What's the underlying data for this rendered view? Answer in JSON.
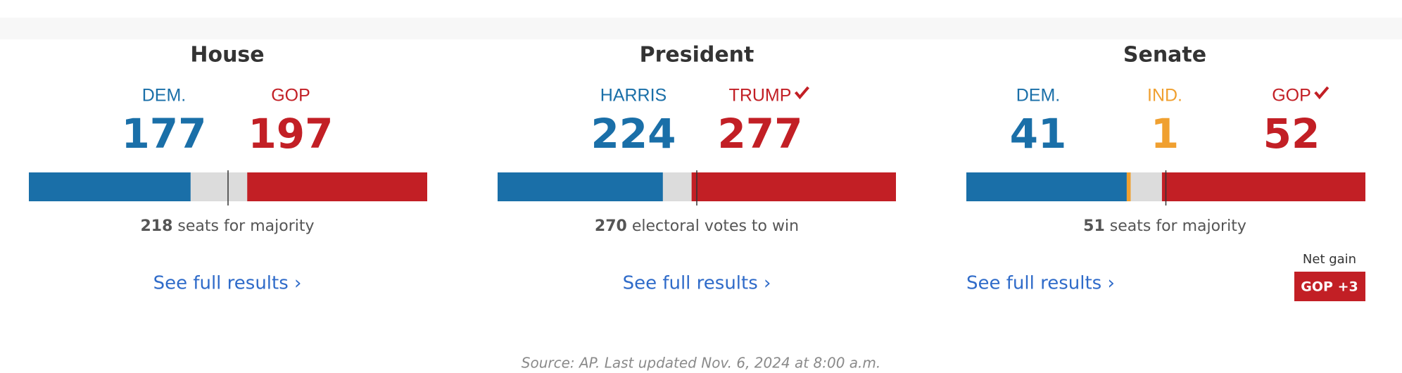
{
  "races": [
    {
      "title": "House",
      "candidates": [
        {
          "name": "DEM.",
          "votes": 177,
          "color": "#1a6fa8",
          "winner": false
        },
        {
          "name": "GOP",
          "votes": 197,
          "color": "#c21f25",
          "winner": false
        }
      ],
      "threshold": 218,
      "threshold_text": "seats for majority",
      "link": "See full results ›"
    },
    {
      "title": "President",
      "candidates": [
        {
          "name": "HARRIS",
          "votes": 224,
          "color": "#1a6fa8",
          "winner": false
        },
        {
          "name": "TRUMP",
          "votes": 277,
          "color": "#c21f25",
          "winner": true
        }
      ],
      "threshold": 270,
      "threshold_text": "electoral votes to win",
      "link": "See full results ›"
    },
    {
      "title": "Senate",
      "candidates": [
        {
          "name": "DEM.",
          "votes": 41,
          "color": "#1a6fa8",
          "winner": false
        },
        {
          "name": "IND.",
          "votes": 1,
          "color": "#f0a030",
          "winner": false
        },
        {
          "name": "GOP",
          "votes": 52,
          "color": "#c21f25",
          "winner": true
        }
      ],
      "threshold": 51,
      "threshold_text": "seats for majority",
      "link": "See full results ›"
    }
  ],
  "net_gain": {
    "label": "Net gain",
    "value": "GOP +3"
  },
  "source": "Source: AP. Last updated Nov. 6, 2024 at 8:00 a.m."
}
